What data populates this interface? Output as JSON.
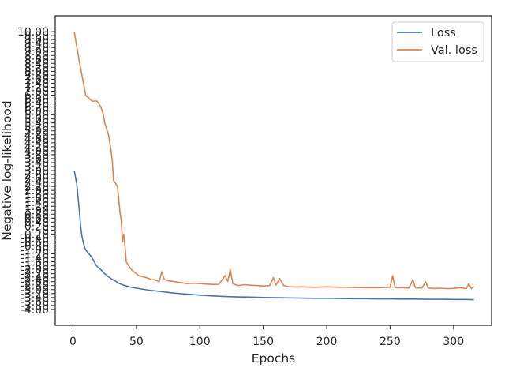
{
  "chart_data": {
    "type": "line",
    "title": "",
    "xlabel": "Epochs",
    "ylabel": "Negative log-likelihood",
    "xlim": [
      -14,
      330
    ],
    "ylim": [
      -4.8,
      10.8
    ],
    "grid": false,
    "legend_position": "top-right",
    "x_ticks": [
      0,
      50,
      100,
      150,
      200,
      250,
      300
    ],
    "x_tick_labels": [
      "0",
      "50",
      "100",
      "150",
      "200",
      "250",
      "300"
    ],
    "y_ticks": [
      -4.0,
      -3.8,
      -3.6,
      -3.4,
      -3.2,
      -3.0,
      -2.8,
      -2.6,
      -2.4,
      -2.2,
      -2.0,
      -1.8,
      -1.6,
      -1.4,
      -1.2,
      -1.0,
      -0.8,
      -0.6,
      -0.4,
      -0.2,
      0.0,
      0.2,
      0.4,
      0.6,
      0.8,
      1.0,
      1.2,
      1.4,
      1.6,
      1.8,
      2.0,
      2.2,
      2.4,
      2.6,
      2.8,
      3.0,
      3.2,
      3.4,
      3.6,
      3.8,
      4.0,
      4.2,
      4.4,
      4.6,
      4.8,
      5.0,
      5.2,
      5.4,
      5.6,
      5.8,
      6.0,
      6.2,
      6.4,
      6.6,
      6.8,
      7.0,
      7.2,
      7.4,
      7.6,
      7.8,
      8.0,
      8.2,
      8.4,
      8.6,
      8.8,
      9.0,
      9.2,
      9.4,
      9.6,
      9.8,
      10.0
    ],
    "y_tick_labels": [
      "-4.00",
      "-3.80",
      "-3.60",
      "-3.40",
      "-3.20",
      "-3.00",
      "-2.80",
      "-2.60",
      "-2.40",
      "-2.20",
      "-2.00",
      "-1.80",
      "-1.60",
      "-1.40",
      "-1.20",
      "-1.00",
      "-0.80",
      "-0.60",
      "-0.40",
      "-0.20",
      "0",
      "0.20",
      "0.40",
      "0.60",
      "0.80",
      "1.00",
      "1.20",
      "1.40",
      "1.60",
      "1.80",
      "2.00",
      "2.20",
      "2.40",
      "2.60",
      "2.80",
      "3.00",
      "3.20",
      "3.40",
      "3.60",
      "3.80",
      "4.00",
      "4.20",
      "4.40",
      "4.60",
      "4.80",
      "5.00",
      "5.20",
      "5.40",
      "5.60",
      "5.80",
      "6.00",
      "6.20",
      "6.40",
      "6.60",
      "6.80",
      "7.00",
      "7.20",
      "7.40",
      "7.60",
      "7.80",
      "8.00",
      "8.20",
      "8.40",
      "8.60",
      "8.80",
      "9.00",
      "9.20",
      "9.40",
      "9.60",
      "9.80",
      "10.00"
    ],
    "series": [
      {
        "name": "Loss",
        "color": "#4c72b0",
        "x": [
          1,
          3,
          5,
          6,
          7,
          8,
          9,
          10,
          12,
          14,
          16,
          18,
          20,
          22,
          25,
          28,
          30,
          33,
          36,
          40,
          45,
          50,
          60,
          70,
          80,
          90,
          100,
          110,
          120,
          130,
          140,
          150,
          160,
          170,
          180,
          190,
          200,
          210,
          220,
          230,
          240,
          250,
          260,
          270,
          280,
          290,
          300,
          305,
          310,
          316
        ],
        "y": [
          3.0,
          2.3,
          1.0,
          0.2,
          -0.3,
          -0.6,
          -0.85,
          -1.0,
          -1.15,
          -1.3,
          -1.5,
          -1.75,
          -1.9,
          -2.0,
          -2.2,
          -2.35,
          -2.45,
          -2.55,
          -2.68,
          -2.78,
          -2.87,
          -2.93,
          -3.03,
          -3.1,
          -3.18,
          -3.23,
          -3.28,
          -3.32,
          -3.35,
          -3.37,
          -3.38,
          -3.4,
          -3.41,
          -3.42,
          -3.43,
          -3.44,
          -3.44,
          -3.45,
          -3.46,
          -3.46,
          -3.47,
          -3.47,
          -3.48,
          -3.48,
          -3.49,
          -3.49,
          -3.5,
          -3.5,
          -3.5,
          -3.51
        ]
      },
      {
        "name": "Val. loss",
        "color": "#dd8452",
        "x": [
          1,
          5,
          10,
          15,
          19,
          22,
          24,
          25,
          26,
          28,
          30,
          31,
          32,
          35,
          36,
          37,
          38,
          39,
          40,
          41,
          42,
          44,
          46,
          48,
          50,
          52,
          55,
          58,
          60,
          62,
          64,
          66,
          68,
          70,
          72,
          75,
          80,
          85,
          90,
          95,
          100,
          105,
          110,
          115,
          120,
          122,
          124,
          126,
          130,
          135,
          140,
          145,
          150,
          155,
          158,
          160,
          163,
          166,
          170,
          175,
          180,
          190,
          200,
          210,
          220,
          230,
          240,
          250,
          252,
          254,
          256,
          260,
          265,
          268,
          270,
          275,
          278,
          280,
          285,
          290,
          295,
          300,
          305,
          310,
          312,
          314,
          316
        ],
        "y": [
          10.0,
          8.5,
          6.8,
          6.5,
          6.5,
          6.2,
          5.8,
          5.4,
          5.2,
          4.8,
          4.0,
          3.5,
          2.5,
          2.2,
          1.6,
          0.9,
          0.5,
          -0.6,
          -0.2,
          -0.8,
          -1.6,
          -1.8,
          -2.0,
          -2.1,
          -2.2,
          -2.3,
          -2.35,
          -2.4,
          -2.45,
          -2.5,
          -2.5,
          -2.55,
          -2.6,
          -2.1,
          -2.5,
          -2.55,
          -2.6,
          -2.65,
          -2.7,
          -2.68,
          -2.7,
          -2.72,
          -2.74,
          -2.73,
          -2.3,
          -2.6,
          -2.0,
          -2.7,
          -2.8,
          -2.75,
          -2.78,
          -2.8,
          -2.82,
          -2.8,
          -2.4,
          -2.78,
          -2.45,
          -2.8,
          -2.85,
          -2.87,
          -2.86,
          -2.88,
          -2.86,
          -2.88,
          -2.89,
          -2.9,
          -2.9,
          -2.88,
          -2.3,
          -2.9,
          -2.91,
          -2.9,
          -2.92,
          -2.5,
          -2.9,
          -2.93,
          -2.6,
          -2.92,
          -2.94,
          -2.93,
          -2.95,
          -2.94,
          -2.9,
          -2.95,
          -2.7,
          -2.95,
          -2.85
        ]
      }
    ]
  }
}
